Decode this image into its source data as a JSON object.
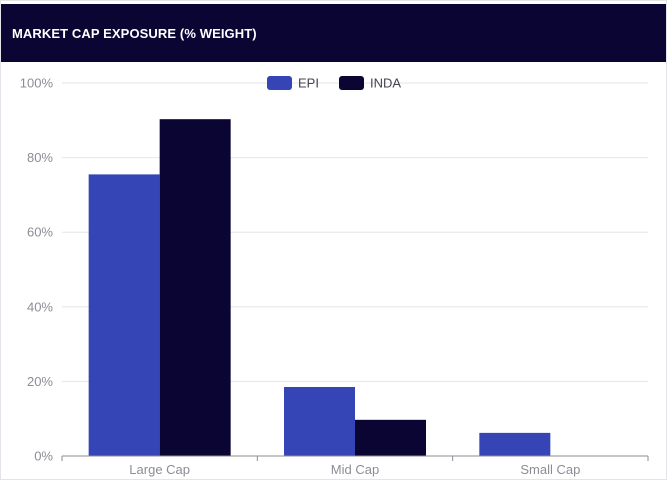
{
  "header": {
    "title": "MARKET CAP EXPOSURE (% WEIGHT)"
  },
  "chart_data": {
    "type": "bar",
    "title": "MARKET CAP EXPOSURE (% WEIGHT)",
    "xlabel": "",
    "ylabel": "",
    "categories": [
      "Large Cap",
      "Mid Cap",
      "Small Cap"
    ],
    "series": [
      {
        "name": "EPI",
        "color": "#3545b5",
        "values": [
          75.5,
          18.5,
          6.2
        ]
      },
      {
        "name": "INDA",
        "color": "#0b0533",
        "values": [
          90.3,
          9.7,
          0
        ]
      }
    ],
    "ylim": [
      0,
      100
    ],
    "yticks": [
      "0%",
      "20%",
      "40%",
      "60%",
      "80%",
      "100%"
    ],
    "ytick_values": [
      0,
      20,
      40,
      60,
      80,
      100
    ],
    "grid": true,
    "legend_position": "top-center"
  }
}
